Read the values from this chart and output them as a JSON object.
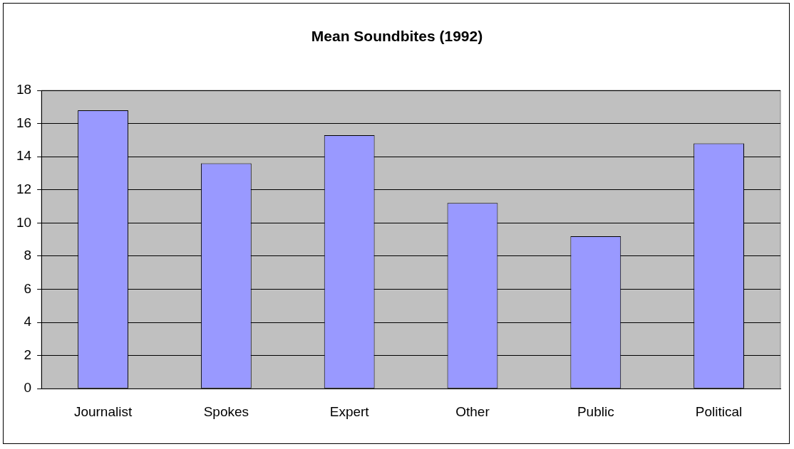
{
  "chart_data": {
    "type": "bar",
    "title": "Mean Soundbites (1992)",
    "categories": [
      "Journalist",
      "Spokes",
      "Expert",
      "Other",
      "Public",
      "Political"
    ],
    "values": [
      16.8,
      13.6,
      15.3,
      11.2,
      9.2,
      14.8
    ],
    "color": "#9999ff",
    "ylim": [
      0,
      18
    ],
    "yticks": [
      0,
      2,
      4,
      6,
      8,
      10,
      12,
      14,
      16,
      18
    ],
    "grid": "y",
    "legend": false
  }
}
